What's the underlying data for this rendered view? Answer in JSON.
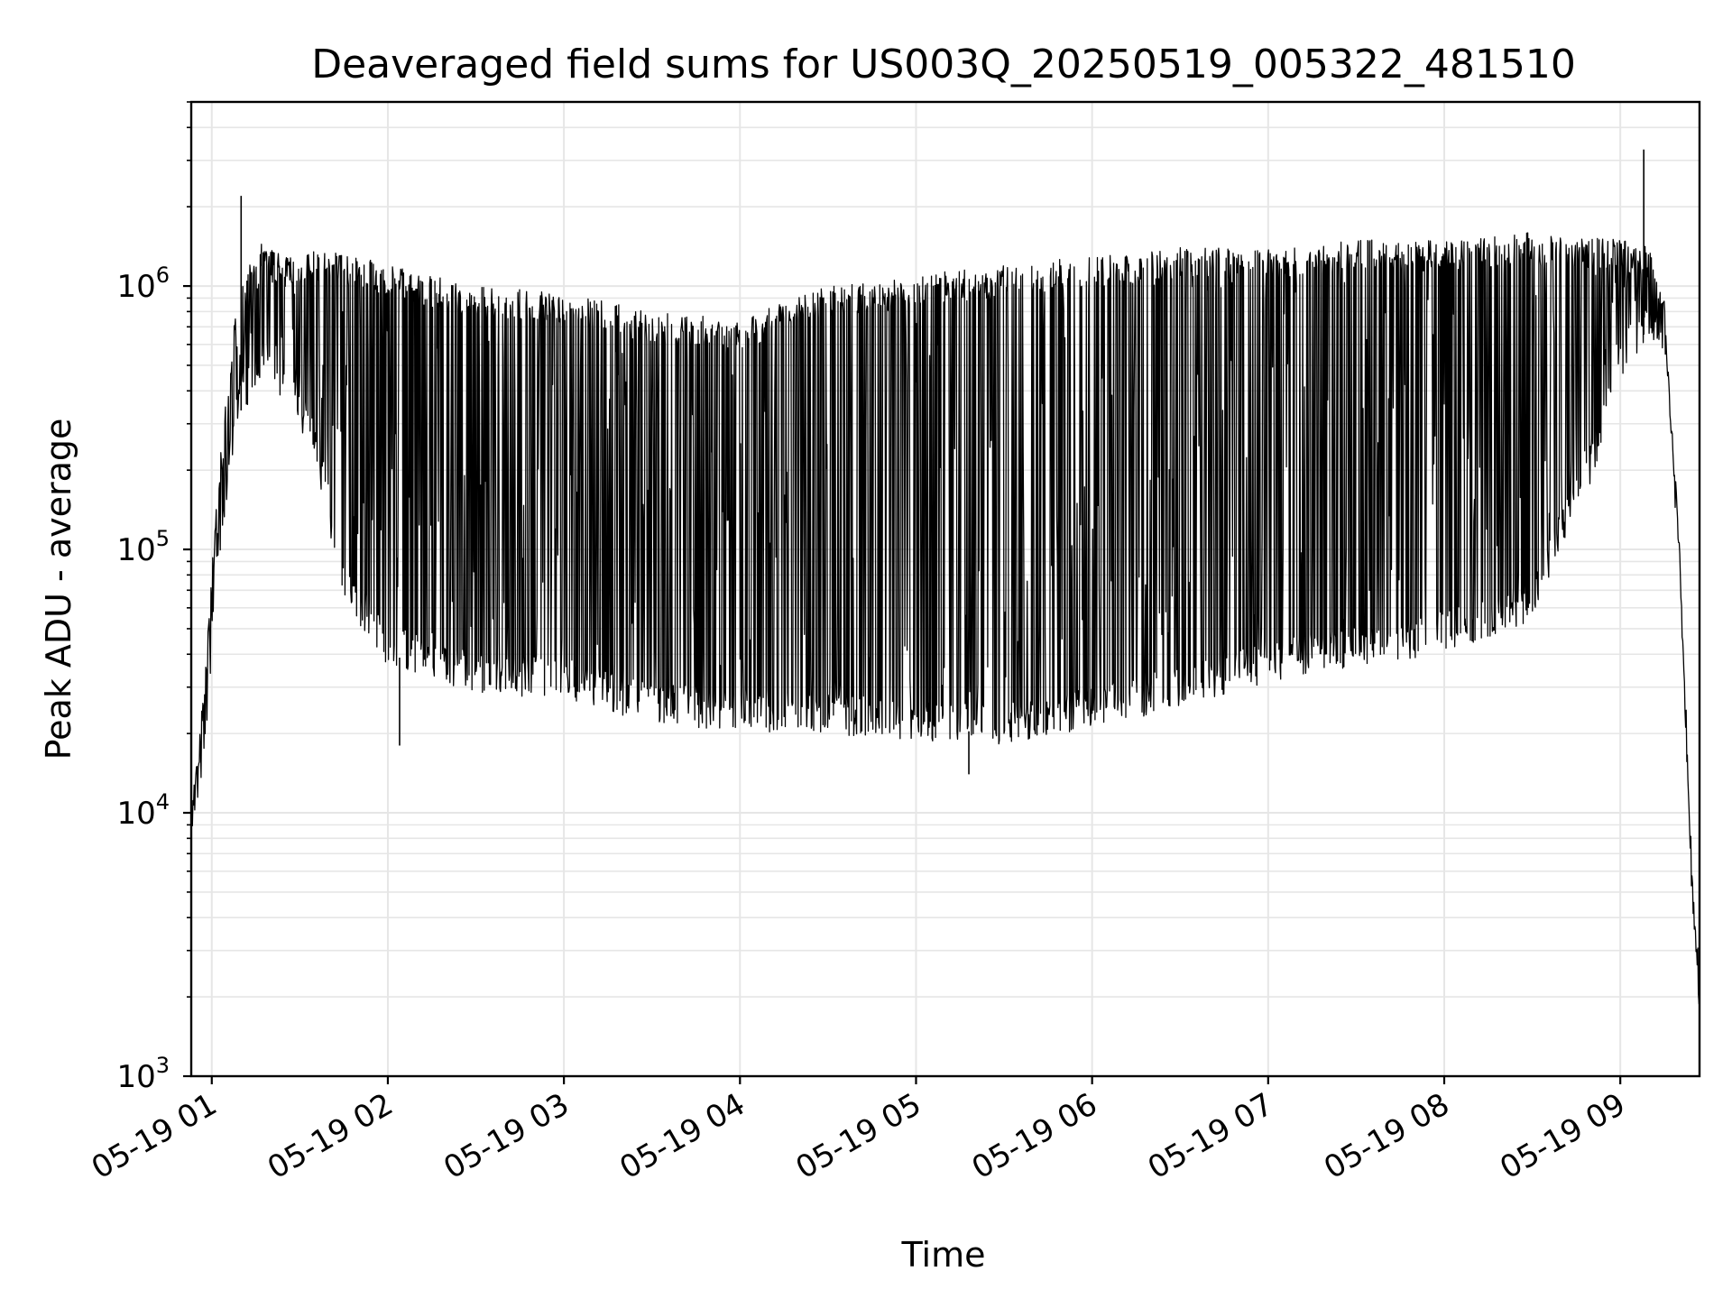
{
  "chart_data": {
    "type": "line",
    "title": "Deaveraged field sums for US003Q_20250519_005322_481510",
    "xlabel": "Time",
    "ylabel": "Peak ADU - average",
    "yscale": "log",
    "ylim": [
      1000,
      5000000
    ],
    "xlim": [
      "2025-05-19 00:53",
      "2025-05-19 09:27"
    ],
    "x_ticks": [
      {
        "label": "05-19 01",
        "time": "2025-05-19 01:00"
      },
      {
        "label": "05-19 02",
        "time": "2025-05-19 02:00"
      },
      {
        "label": "05-19 03",
        "time": "2025-05-19 03:00"
      },
      {
        "label": "05-19 04",
        "time": "2025-05-19 04:00"
      },
      {
        "label": "05-19 05",
        "time": "2025-05-19 05:00"
      },
      {
        "label": "05-19 06",
        "time": "2025-05-19 06:00"
      },
      {
        "label": "05-19 07",
        "time": "2025-05-19 07:00"
      },
      {
        "label": "05-19 08",
        "time": "2025-05-19 08:00"
      },
      {
        "label": "05-19 09",
        "time": "2025-05-19 09:00"
      }
    ],
    "y_ticks": [
      {
        "base": "10",
        "exp": "3",
        "value": 1000
      },
      {
        "base": "10",
        "exp": "4",
        "value": 10000
      },
      {
        "base": "10",
        "exp": "5",
        "value": 100000
      },
      {
        "base": "10",
        "exp": "6",
        "value": 1000000
      }
    ],
    "grid": true,
    "line_color": "#000000",
    "grid_color": "#e6e6e6",
    "series": [
      {
        "peak_envelope": {
          "time": [
            "2025-05-19 00:53",
            "2025-05-19 00:57",
            "2025-05-19 01:02",
            "2025-05-19 01:08",
            "2025-05-19 01:15",
            "2025-05-19 01:25",
            "2025-05-19 01:40",
            "2025-05-19 02:00",
            "2025-05-19 02:30",
            "2025-05-19 03:00",
            "2025-05-19 03:30",
            "2025-05-19 04:00",
            "2025-05-19 04:30",
            "2025-05-19 05:00",
            "2025-05-19 05:30",
            "2025-05-19 06:00",
            "2025-05-19 06:30",
            "2025-05-19 07:00",
            "2025-05-19 07:30",
            "2025-05-19 08:00",
            "2025-05-19 08:30",
            "2025-05-19 09:00",
            "2025-05-19 09:10",
            "2025-05-19 09:15",
            "2025-05-19 09:20",
            "2025-05-19 09:24",
            "2025-05-19 09:27"
          ],
          "value": [
            10000,
            28000,
            180000,
            800000,
            1500000,
            1300000,
            1400000,
            1200000,
            1000000,
            950000,
            800000,
            750000,
            1000000,
            1100000,
            1200000,
            1300000,
            1400000,
            1400000,
            1500000,
            1500000,
            1600000,
            1500000,
            1400000,
            900000,
            120000,
            7000,
            2000
          ]
        },
        "trough_envelope": {
          "time": [
            "2025-05-19 00:53",
            "2025-05-19 00:57",
            "2025-05-19 01:02",
            "2025-05-19 01:08",
            "2025-05-19 01:15",
            "2025-05-19 01:25",
            "2025-05-19 01:35",
            "2025-05-19 01:45",
            "2025-05-19 02:00",
            "2025-05-19 02:30",
            "2025-05-19 03:00",
            "2025-05-19 03:30",
            "2025-05-19 04:00",
            "2025-05-19 04:30",
            "2025-05-19 05:00",
            "2025-05-19 05:30",
            "2025-05-19 06:00",
            "2025-05-19 06:30",
            "2025-05-19 07:00",
            "2025-05-19 07:30",
            "2025-05-19 08:00",
            "2025-05-19 08:30",
            "2025-05-19 08:50",
            "2025-05-19 09:00",
            "2025-05-19 09:10",
            "2025-05-19 09:15",
            "2025-05-19 09:20",
            "2025-05-19 09:24",
            "2025-05-19 09:27"
          ],
          "value": [
            9500,
            15000,
            90000,
            300000,
            450000,
            400000,
            250000,
            70000,
            40000,
            32000,
            30000,
            24000,
            23000,
            22000,
            21000,
            20000,
            23000,
            28000,
            35000,
            40000,
            45000,
            60000,
            200000,
            500000,
            700000,
            600000,
            100000,
            7000,
            2000
          ]
        },
        "spikes": [
          {
            "time": "2025-05-19 01:10",
            "value": 2200000
          },
          {
            "time": "2025-05-19 09:08",
            "value": 3300000
          },
          {
            "time": "2025-05-19 02:04",
            "value": 18000
          },
          {
            "time": "2025-05-19 05:18",
            "value": 14000
          }
        ]
      }
    ]
  }
}
